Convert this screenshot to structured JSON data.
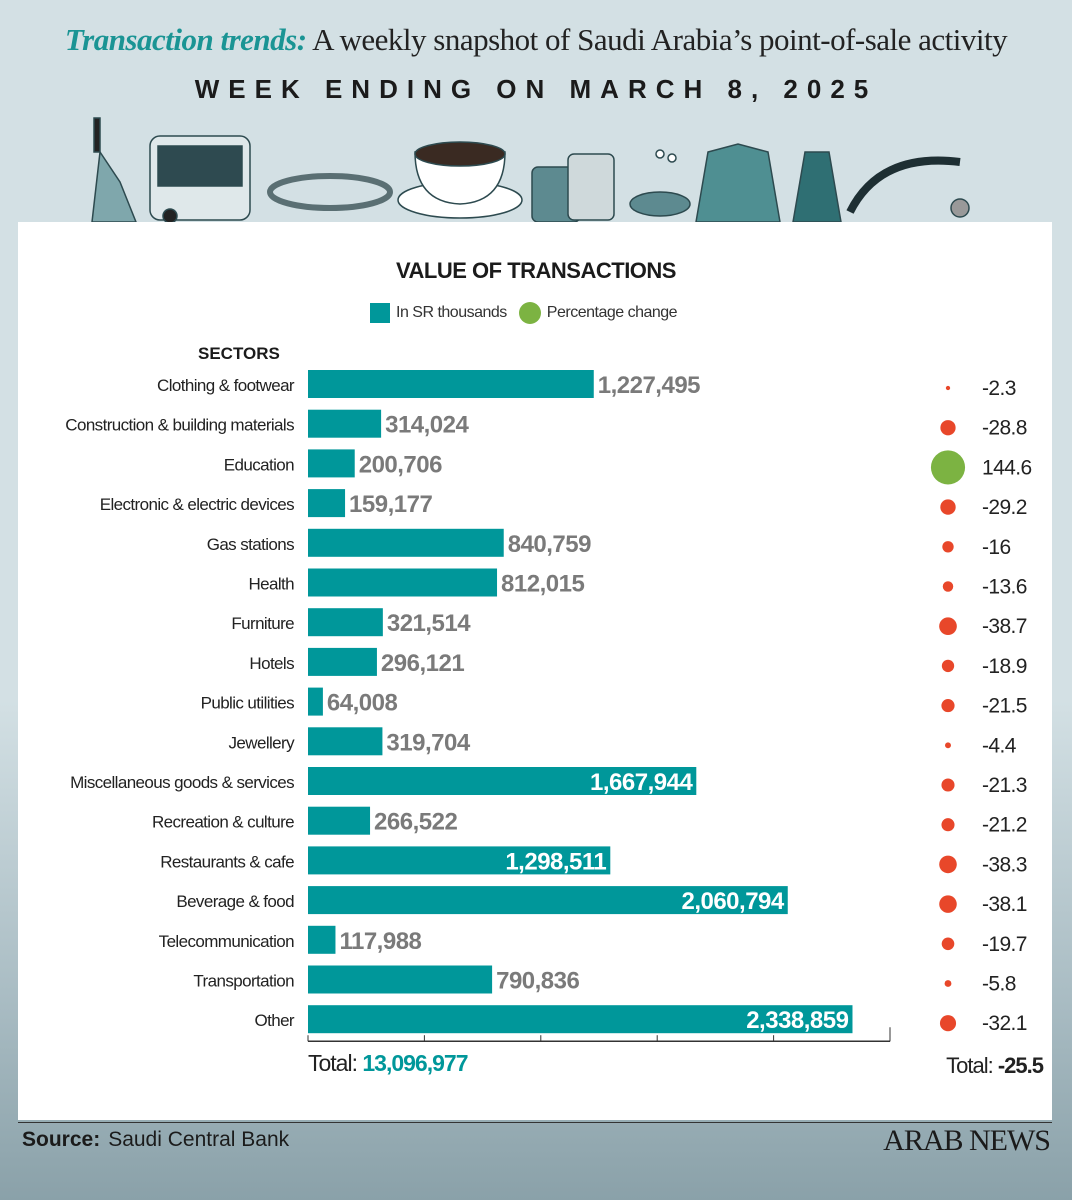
{
  "header": {
    "title_accent": "Transaction trends:",
    "title_rest": " A weekly snapshot of Saudi Arabia’s point-of-sale activity",
    "subtitle": "WEEK ENDING ON MARCH 8, 2025"
  },
  "icons": [
    "phone-icon",
    "bus-icon",
    "bracelet-icon",
    "coffee-cup-icon",
    "luggage-icon",
    "jewelry-icon",
    "jacket-icon",
    "dress-icon",
    "stethoscope-icon"
  ],
  "chart_data": {
    "type": "bar",
    "title": "VALUE OF TRANSACTIONS",
    "legend": [
      "In SR thousands",
      "Percentage change"
    ],
    "category_header": "SECTORS",
    "categories": [
      "Clothing & footwear",
      "Construction & building materials",
      "Education",
      "Electronic & electric devices",
      "Gas stations",
      "Health",
      "Furniture",
      "Hotels",
      "Public utilities",
      "Jewellery",
      "Miscellaneous goods & services",
      "Recreation & culture",
      "Restaurants & cafe",
      "Beverage & food",
      "Telecommunication",
      "Transportation",
      "Other"
    ],
    "values": [
      1227495,
      314024,
      200706,
      159177,
      840759,
      812015,
      321514,
      296121,
      64008,
      319704,
      1667944,
      266522,
      1298511,
      2060794,
      117988,
      790836,
      2338859
    ],
    "value_labels": [
      "1,227,495",
      "314,024",
      "200,706",
      "159,177",
      "840,759",
      "812,015",
      "321,514",
      "296,121",
      "64,008",
      "319,704",
      "1,667,944",
      "266,522",
      "1,298,511",
      "2,060,794",
      "117,988",
      "790,836",
      "2,338,859"
    ],
    "pct_change": [
      -2.3,
      -28.8,
      144.6,
      -29.2,
      -16,
      -13.6,
      -38.7,
      -18.9,
      -21.5,
      -4.4,
      -21.3,
      -21.2,
      -38.3,
      -38.1,
      -19.7,
      -5.8,
      -32.1
    ],
    "pct_labels": [
      "-2.3",
      "-28.8",
      "144.6",
      "-29.2",
      "-16",
      "-13.6",
      "-38.7",
      "-18.9",
      "-21.5",
      "-4.4",
      "-21.3",
      "-21.2",
      "-38.3",
      "-38.1",
      "-19.7",
      "-5.8",
      "-32.1"
    ],
    "xlim": [
      0,
      2500000
    ],
    "orientation": "horizontal",
    "colors": {
      "bar": "#00979a",
      "positive": "#7cb342",
      "negative": "#e8472a",
      "outside_label": "#7a7a7a"
    },
    "total_label": "Total:",
    "total_value": "13,096,977",
    "total_pct": "-25.5"
  },
  "footer": {
    "source_label": "Source:",
    "source": "Saudi Central Bank",
    "logo": "ARAB NEWS"
  }
}
